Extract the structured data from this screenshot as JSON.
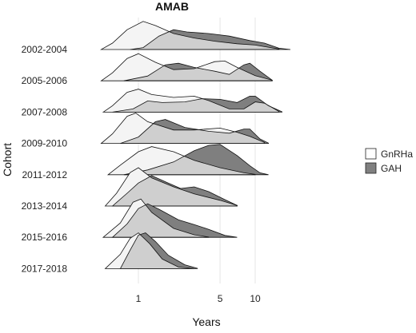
{
  "chart_data": {
    "type": "ridgeline",
    "title": "AMAB",
    "xlabel": "Years",
    "ylabel": "Cohort",
    "x_scale": "log10",
    "xlim": [
      0.45,
      20
    ],
    "x_ticks": [
      {
        "value": 1,
        "label": "1"
      },
      {
        "value": 5,
        "label": "5"
      },
      {
        "value": 10,
        "label": "10"
      }
    ],
    "grid": true,
    "legend_position": "right",
    "categories": [
      "2002-2004",
      "2005-2006",
      "2007-2008",
      "2009-2010",
      "2011-2012",
      "2013-2014",
      "2015-2016",
      "2017-2018"
    ],
    "series": [
      {
        "name": "GnRHa",
        "color": "#ffffff",
        "densities": [
          [
            [
              0.48,
              0
            ],
            [
              0.6,
              0.2
            ],
            [
              0.8,
              0.62
            ],
            [
              1.1,
              0.88
            ],
            [
              1.4,
              0.75
            ],
            [
              2,
              0.5
            ],
            [
              3,
              0.36
            ],
            [
              4.5,
              0.26
            ],
            [
              7,
              0.18
            ],
            [
              10,
              0.14
            ],
            [
              12,
              0.09
            ],
            [
              16,
              0.015
            ]
          ],
          [
            [
              0.48,
              0
            ],
            [
              0.6,
              0.25
            ],
            [
              0.8,
              0.7
            ],
            [
              1,
              0.85
            ],
            [
              1.4,
              0.58
            ],
            [
              2,
              0.35
            ],
            [
              3,
              0.38
            ],
            [
              4.5,
              0.6
            ],
            [
              5.5,
              0.62
            ],
            [
              7,
              0.42
            ],
            [
              10,
              0.16
            ],
            [
              14,
              0.02
            ]
          ],
          [
            [
              0.5,
              0
            ],
            [
              0.6,
              0.2
            ],
            [
              0.8,
              0.62
            ],
            [
              1,
              0.72
            ],
            [
              1.3,
              0.55
            ],
            [
              2,
              0.46
            ],
            [
              3,
              0.5
            ],
            [
              4,
              0.36
            ],
            [
              6,
              0.1
            ],
            [
              8,
              0.1
            ],
            [
              10,
              0.32
            ],
            [
              12,
              0.28
            ],
            [
              16,
              0.02
            ]
          ],
          [
            [
              0.48,
              0
            ],
            [
              0.6,
              0.3
            ],
            [
              0.8,
              0.85
            ],
            [
              0.95,
              0.95
            ],
            [
              1.2,
              0.68
            ],
            [
              2,
              0.42
            ],
            [
              3,
              0.42
            ],
            [
              5,
              0.48
            ],
            [
              7,
              0.35
            ],
            [
              9,
              0.22
            ],
            [
              12,
              0.03
            ]
          ],
          [
            [
              0.55,
              0
            ],
            [
              0.7,
              0.3
            ],
            [
              1,
              0.72
            ],
            [
              1.3,
              0.88
            ],
            [
              2,
              0.72
            ],
            [
              3,
              0.45
            ],
            [
              5,
              0.22
            ],
            [
              8,
              0.06
            ],
            [
              10,
              0.01
            ]
          ],
          [
            [
              0.52,
              0
            ],
            [
              0.65,
              0.4
            ],
            [
              0.85,
              1.05
            ],
            [
              1,
              1.2
            ],
            [
              1.3,
              0.88
            ],
            [
              2,
              0.6
            ],
            [
              3,
              0.38
            ],
            [
              5,
              0.18
            ],
            [
              7,
              0.02
            ]
          ],
          [
            [
              0.5,
              0
            ],
            [
              0.7,
              0.45
            ],
            [
              0.9,
              1.1
            ],
            [
              1.05,
              1.2
            ],
            [
              1.3,
              0.78
            ],
            [
              2,
              0.28
            ],
            [
              3,
              0.08
            ],
            [
              4,
              0.01
            ]
          ],
          [
            [
              0.52,
              0
            ],
            [
              0.7,
              0.45
            ],
            [
              0.85,
              0.95
            ],
            [
              1,
              1.12
            ],
            [
              1.25,
              0.78
            ],
            [
              1.6,
              0.3
            ],
            [
              2.2,
              0.05
            ],
            [
              3,
              0
            ]
          ]
        ]
      },
      {
        "name": "GAH",
        "color": "#808080",
        "densities": [
          [
            [
              0.85,
              0
            ],
            [
              1.1,
              0.06
            ],
            [
              1.5,
              0.42
            ],
            [
              2,
              0.62
            ],
            [
              2.6,
              0.55
            ],
            [
              4,
              0.5
            ],
            [
              6,
              0.42
            ],
            [
              9,
              0.28
            ],
            [
              12,
              0.2
            ],
            [
              16,
              0.04
            ],
            [
              20,
              0
            ]
          ],
          [
            [
              0.75,
              0
            ],
            [
              1.2,
              0.15
            ],
            [
              1.7,
              0.5
            ],
            [
              2.2,
              0.55
            ],
            [
              3,
              0.42
            ],
            [
              4.5,
              0.3
            ],
            [
              6,
              0.2
            ],
            [
              8,
              0.5
            ],
            [
              9,
              0.55
            ],
            [
              11,
              0.3
            ],
            [
              14,
              0.02
            ]
          ],
          [
            [
              0.6,
              0
            ],
            [
              0.9,
              0.1
            ],
            [
              1.2,
              0.35
            ],
            [
              1.6,
              0.3
            ],
            [
              2.5,
              0.32
            ],
            [
              3.5,
              0.42
            ],
            [
              5,
              0.4
            ],
            [
              7,
              0.3
            ],
            [
              9,
              0.5
            ],
            [
              10,
              0.5
            ],
            [
              13,
              0.2
            ],
            [
              17,
              0.01
            ]
          ],
          [
            [
              0.7,
              0
            ],
            [
              1,
              0.2
            ],
            [
              1.4,
              0.68
            ],
            [
              1.7,
              0.75
            ],
            [
              2.5,
              0.5
            ],
            [
              4,
              0.38
            ],
            [
              6,
              0.32
            ],
            [
              8,
              0.45
            ],
            [
              9,
              0.45
            ],
            [
              11,
              0.14
            ],
            [
              13,
              0.01
            ]
          ],
          [
            [
              0.75,
              0
            ],
            [
              1.2,
              0.15
            ],
            [
              2,
              0.4
            ],
            [
              3,
              0.75
            ],
            [
              4,
              0.92
            ],
            [
              5,
              0.95
            ],
            [
              7,
              0.6
            ],
            [
              9,
              0.28
            ],
            [
              11,
              0.06
            ],
            [
              13,
              0
            ]
          ],
          [
            [
              0.6,
              0
            ],
            [
              0.8,
              0.4
            ],
            [
              1,
              0.72
            ],
            [
              1.3,
              0.95
            ],
            [
              1.8,
              0.72
            ],
            [
              2.3,
              0.55
            ],
            [
              3,
              0.6
            ],
            [
              4,
              0.45
            ],
            [
              5.5,
              0.2
            ],
            [
              7,
              0.02
            ]
          ],
          [
            [
              0.6,
              0
            ],
            [
              0.8,
              0.42
            ],
            [
              1,
              0.9
            ],
            [
              1.2,
              1.05
            ],
            [
              1.5,
              0.88
            ],
            [
              2.2,
              0.55
            ],
            [
              3,
              0.4
            ],
            [
              4,
              0.25
            ],
            [
              5.5,
              0.06
            ],
            [
              7,
              0
            ]
          ],
          [
            [
              0.7,
              0
            ],
            [
              0.85,
              0.58
            ],
            [
              1,
              1.05
            ],
            [
              1.15,
              1.12
            ],
            [
              1.4,
              0.85
            ],
            [
              1.8,
              0.42
            ],
            [
              2.5,
              0.12
            ],
            [
              3.2,
              0.01
            ]
          ]
        ]
      }
    ],
    "fill_colors": {
      "gnrha_only": "#f4f4f4",
      "gah_only": "#7f7f7f",
      "overlap": "#cfcfcf"
    }
  }
}
